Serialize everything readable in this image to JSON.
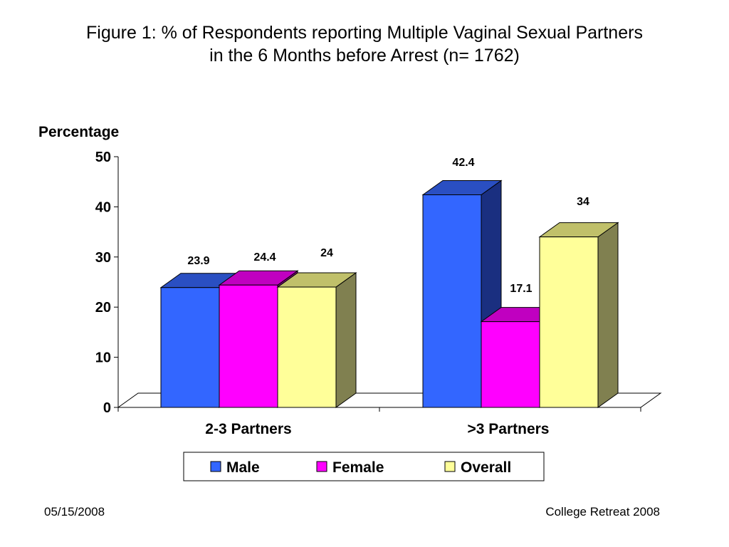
{
  "slide": {
    "title_line1": "Figure 1: % of Respondents reporting Multiple Vaginal Sexual Partners",
    "title_line2": "in the 6 Months before Arrest (n= 1762)",
    "footer_date": "05/15/2008",
    "footer_event": "College Retreat 2008"
  },
  "chart_data": {
    "type": "bar",
    "title": "Figure 1: % of Respondents reporting Multiple Vaginal Sexual Partners in the 6 Months before Arrest (n= 1762)",
    "ylabel": "Percentage",
    "xlabel": "",
    "categories": [
      "2-3 Partners",
      ">3 Partners"
    ],
    "series": [
      {
        "name": "Male",
        "values": [
          23.9,
          42.4
        ],
        "labels": [
          "23.9",
          "42.4"
        ],
        "color": "#3366FF",
        "top_color": "#2A4FC2",
        "side_color": "#1A2F80"
      },
      {
        "name": "Female",
        "values": [
          24.4,
          17.1
        ],
        "labels": [
          "24.4",
          "17.1"
        ],
        "color": "#FF00FF",
        "top_color": "#C000C0",
        "side_color": "#800080"
      },
      {
        "name": "Overall",
        "values": [
          24,
          34
        ],
        "labels": [
          "24",
          "34"
        ],
        "color": "#FFFF99",
        "top_color": "#C0C06A",
        "side_color": "#808050"
      }
    ],
    "ylim": [
      0,
      50
    ],
    "yticks": [
      0,
      10,
      20,
      30,
      40,
      50
    ],
    "grid": false,
    "three_d": true,
    "legend_position": "bottom"
  }
}
